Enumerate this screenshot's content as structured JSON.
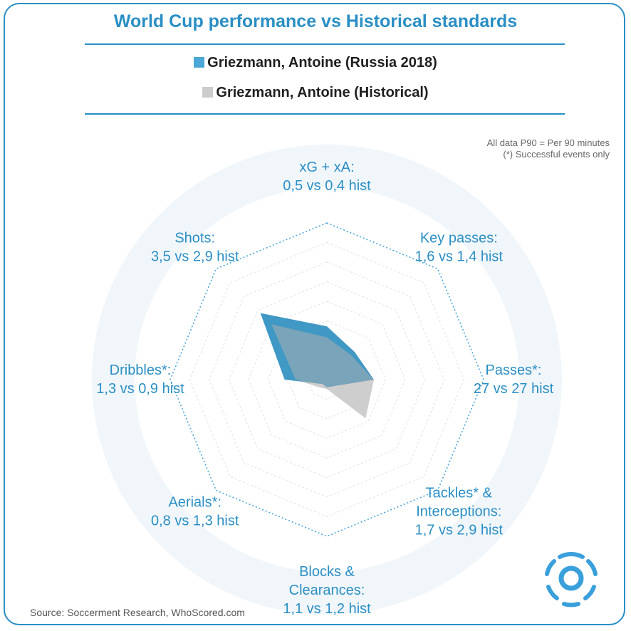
{
  "title": "World Cup performance vs Historical standards",
  "legend": {
    "current": {
      "label": "Griezmann, Antoine (Russia 2018)",
      "color": "#4ba7d6"
    },
    "historical": {
      "label": "Griezmann, Antoine (Historical)",
      "color": "#cccccc"
    }
  },
  "notes": {
    "line1": "All data P90 = Per 90 minutes",
    "line2": "(*) Successful events only"
  },
  "source": "Source: Soccerment Research, WhoScored.com",
  "chart_data": {
    "type": "radar",
    "series": [
      {
        "name": "Griezmann, Antoine (Russia 2018)",
        "color": "#4ba7d6",
        "values": [
          0.5,
          1.6,
          27,
          1.7,
          1.1,
          0.8,
          1.3,
          3.5
        ]
      },
      {
        "name": "Griezmann, Antoine (Historical)",
        "color": "#cccccc",
        "values": [
          0.4,
          1.4,
          27,
          2.9,
          1.2,
          1.3,
          0.9,
          2.9
        ]
      }
    ],
    "axes": [
      {
        "lines": [
          "xG + xA:",
          "0,5 vs 0,4 hist"
        ],
        "fill_current": 0.34,
        "fill_hist": 0.27
      },
      {
        "lines": [
          "Key passes:",
          "1,6 vs 1,4 hist"
        ],
        "fill_current": 0.25,
        "fill_hist": 0.22
      },
      {
        "lines": [
          "Passes*:",
          "27 vs 27 hist"
        ],
        "fill_current": 0.3,
        "fill_hist": 0.3
      },
      {
        "lines": [
          "Tackles* &",
          "Interceptions:",
          "1,7 vs 2,9 hist"
        ],
        "fill_current": 0.06,
        "fill_hist": 0.35
      },
      {
        "lines": [
          "Blocks &",
          "Clearances:",
          "1,1 vs 1,2 hist"
        ],
        "fill_current": 0.05,
        "fill_hist": 0.06
      },
      {
        "lines": [
          "Aerials*:",
          "0,8 vs 1,3 hist"
        ],
        "fill_current": 0.04,
        "fill_hist": 0.07
      },
      {
        "lines": [
          "Dribbles*:",
          "1,3 vs 0,9 hist"
        ],
        "fill_current": 0.27,
        "fill_hist": 0.2
      },
      {
        "lines": [
          "Shots:",
          "3,5 vs 2,9 hist"
        ],
        "fill_current": 0.6,
        "fill_hist": 0.5
      }
    ],
    "rings": 8,
    "grid": true
  }
}
